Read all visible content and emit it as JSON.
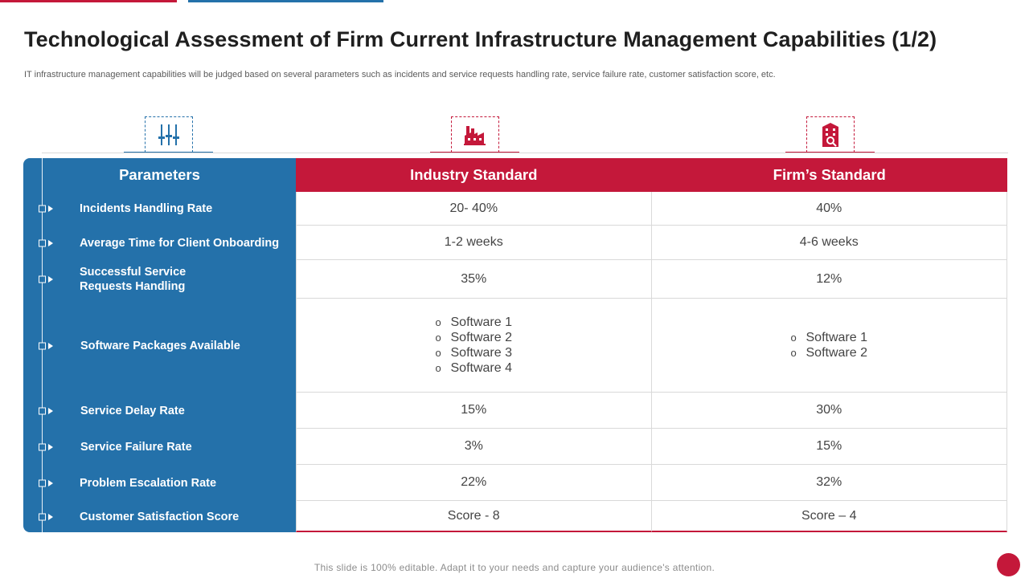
{
  "slide": {
    "title": "Technological Assessment of Firm Current Infrastructure Management Capabilities (1/2)",
    "subtitle": "IT infrastructure management capabilities will be judged based on several parameters such as incidents and service requests handling rate, service failure rate, customer satisfaction score, etc.",
    "footer": "This slide is 100% editable. Adapt it to your needs and capture your audience's attention."
  },
  "colors": {
    "accent_red": "#c4183a",
    "accent_blue": "#2471aa"
  },
  "icons": [
    "sliders-icon",
    "factory-icon",
    "building-icon"
  ],
  "table": {
    "headers": {
      "parameters": "Parameters",
      "industry": "Industry Standard",
      "firm": "Firm’s Standard"
    },
    "rows": [
      {
        "parameter": "Incidents Handling Rate",
        "industry": "20- 40%",
        "firm": "40%"
      },
      {
        "parameter": "Average Time for Client Onboarding",
        "industry": "1-2 weeks",
        "firm": "4-6 weeks"
      },
      {
        "parameter": "Successful Service Requests Handling",
        "industry": "35%",
        "firm": "12%"
      },
      {
        "parameter": "Software Packages Available",
        "industry_list": [
          "Software 1",
          "Software 2",
          "Software 3",
          "Software 4"
        ],
        "firm_list": [
          "Software 1",
          "Software 2"
        ],
        "bullet": "o"
      },
      {
        "parameter": "Service Delay Rate",
        "industry": "15%",
        "firm": "30%"
      },
      {
        "parameter": "Service Failure Rate",
        "industry": "3%",
        "firm": "15%"
      },
      {
        "parameter": "Problem Escalation Rate",
        "industry": "22%",
        "firm": "32%"
      },
      {
        "parameter": "Customer Satisfaction Score",
        "industry": "Score - 8",
        "firm": "Score – 4"
      }
    ]
  }
}
